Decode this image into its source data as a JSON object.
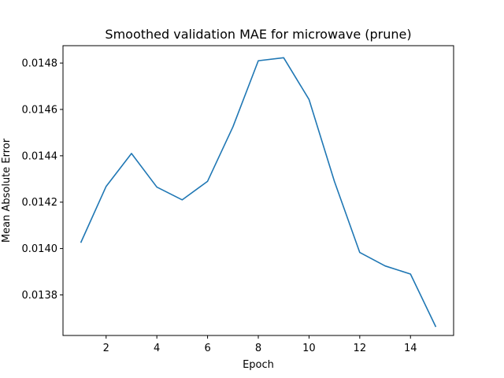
{
  "chart_data": {
    "type": "line",
    "title": "Smoothed validation MAE for microwave (prune)",
    "xlabel": "Epoch",
    "ylabel": "Mean Absolute Error",
    "xlim": [
      0.3,
      15.7
    ],
    "ylim": [
      0.013625,
      0.014875
    ],
    "xticks": [
      2,
      4,
      6,
      8,
      10,
      12,
      14
    ],
    "xtick_labels": [
      "2",
      "4",
      "6",
      "8",
      "10",
      "12",
      "14"
    ],
    "yticks": [
      0.0138,
      0.014,
      0.0142,
      0.0144,
      0.0146,
      0.0148
    ],
    "ytick_labels": [
      "0.0138",
      "0.0140",
      "0.0142",
      "0.0144",
      "0.0146",
      "0.0148"
    ],
    "grid": false,
    "series": [
      {
        "color": "#1f77b4",
        "x": [
          1,
          2,
          3,
          4,
          5,
          6,
          7,
          8,
          9,
          10,
          11,
          12,
          13,
          14,
          15
        ],
        "y": [
          0.014025,
          0.014268,
          0.01441,
          0.014265,
          0.01421,
          0.01429,
          0.014525,
          0.01481,
          0.014823,
          0.014643,
          0.01429,
          0.013983,
          0.013925,
          0.01389,
          0.013662
        ]
      }
    ]
  }
}
